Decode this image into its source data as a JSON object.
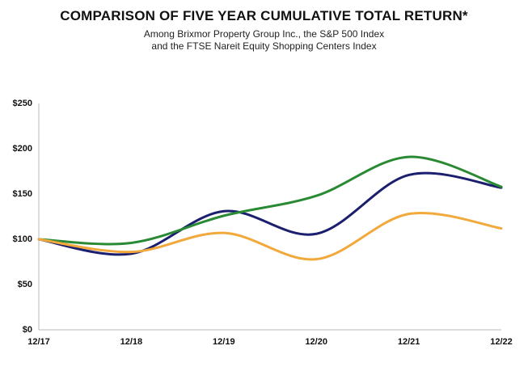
{
  "chart_data": {
    "type": "line",
    "title": "COMPARISON OF FIVE YEAR CUMULATIVE TOTAL RETURN*",
    "subtitle": [
      "Among Brixmor Property Group Inc., the S&P 500 Index",
      "and the FTSE Nareit Equity Shopping Centers Index"
    ],
    "xlabel": "",
    "ylabel": "",
    "categories": [
      "12/17",
      "12/18",
      "12/19",
      "12/20",
      "12/21",
      "12/22"
    ],
    "y_ticks": [
      "$0",
      "$50",
      "$100",
      "$150",
      "$200",
      "$250"
    ],
    "y_tick_values": [
      0,
      50,
      100,
      150,
      200,
      250
    ],
    "ylim": [
      0,
      250
    ],
    "grid": false,
    "legend": "none",
    "series": [
      {
        "color": "#1b1f6e",
        "values": [
          100,
          84,
          131,
          106,
          171,
          157
        ]
      },
      {
        "color": "#2a8a33",
        "values": [
          100,
          96,
          126,
          148,
          191,
          158
        ]
      },
      {
        "color": "#f2a93b",
        "values": [
          100,
          86,
          107,
          78,
          128,
          112
        ]
      }
    ]
  }
}
